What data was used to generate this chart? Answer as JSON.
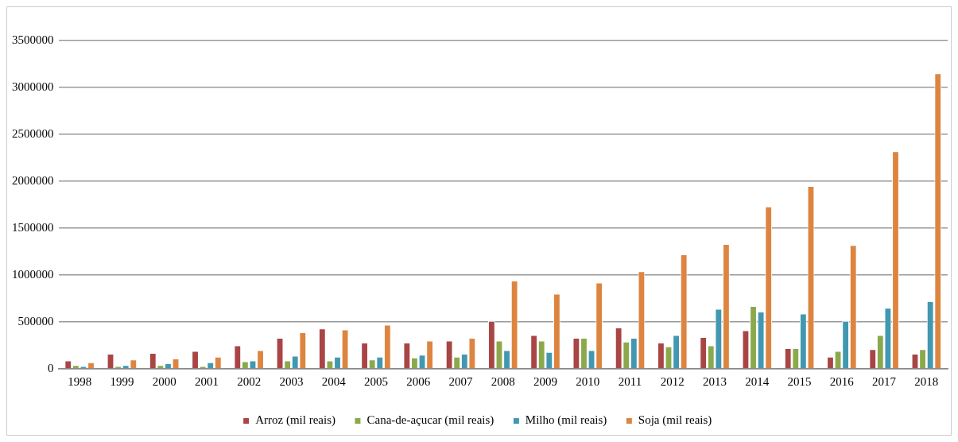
{
  "chart_data": {
    "type": "bar",
    "categories": [
      "1998",
      "1999",
      "2000",
      "2001",
      "2002",
      "2003",
      "2004",
      "2005",
      "2006",
      "2007",
      "2008",
      "2009",
      "2010",
      "2011",
      "2012",
      "2013",
      "2014",
      "2015",
      "2016",
      "2017",
      "2018"
    ],
    "series": [
      {
        "name": "Arroz (mil reais)",
        "color": "#a94545",
        "values": [
          90000,
          160000,
          170000,
          190000,
          250000,
          330000,
          430000,
          280000,
          280000,
          300000,
          510000,
          360000,
          330000,
          440000,
          280000,
          340000,
          410000,
          220000,
          130000,
          210000,
          160000
        ]
      },
      {
        "name": "Cana-de-açucar (mil reais)",
        "color": "#8ba94c",
        "values": [
          40000,
          30000,
          40000,
          30000,
          80000,
          90000,
          90000,
          100000,
          120000,
          130000,
          300000,
          300000,
          330000,
          290000,
          240000,
          250000,
          670000,
          220000,
          190000,
          360000,
          210000
        ]
      },
      {
        "name": "Milho (mil reais)",
        "color": "#4198b0",
        "values": [
          30000,
          40000,
          60000,
          70000,
          90000,
          140000,
          130000,
          130000,
          150000,
          160000,
          200000,
          180000,
          200000,
          330000,
          360000,
          640000,
          610000,
          590000,
          510000,
          650000,
          720000
        ]
      },
      {
        "name": "Soja (mil reais)",
        "color": "#dd8540",
        "values": [
          70000,
          100000,
          110000,
          130000,
          200000,
          390000,
          420000,
          470000,
          300000,
          330000,
          940000,
          800000,
          920000,
          1040000,
          1220000,
          1330000,
          1730000,
          1950000,
          1320000,
          2320000,
          3150000
        ]
      }
    ],
    "ylim": [
      0,
      3500000
    ],
    "yticks": [
      0,
      500000,
      1000000,
      1500000,
      2000000,
      2500000,
      3000000,
      3500000
    ],
    "grid": "y",
    "legend": "bottom"
  }
}
